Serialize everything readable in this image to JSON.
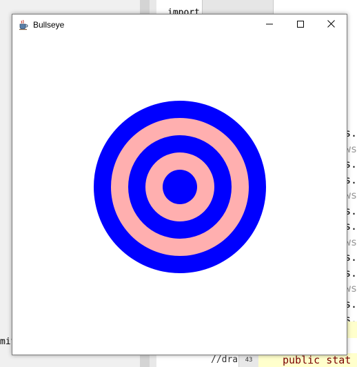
{
  "window": {
    "title": "Bullseye",
    "app_icon": "java-cup-icon",
    "controls": {
      "minimize": "minimize-icon",
      "maximize": "maximize-icon",
      "close": "close-icon"
    }
  },
  "bullseye": {
    "rings": [
      {
        "name": "ring-1",
        "color": "#0000ff"
      },
      {
        "name": "ring-2",
        "color": "#ffafaf"
      },
      {
        "name": "ring-3",
        "color": "#0000ff"
      },
      {
        "name": "ring-4",
        "color": "#ffafaf"
      },
      {
        "name": "center",
        "color": "#0000ff"
      }
    ]
  },
  "background": {
    "code_top": "import",
    "right_column_fragments": [
      "s.",
      "ws",
      "s.",
      "s.",
      "ws",
      "s.",
      "s.",
      "ws",
      "s.",
      "s.",
      "ws",
      "s.",
      "s."
    ],
    "bottom_code_left": "//dra",
    "bottom_line_number": "43",
    "bottom_code_right": "public stat",
    "left_fragment": "mit"
  }
}
